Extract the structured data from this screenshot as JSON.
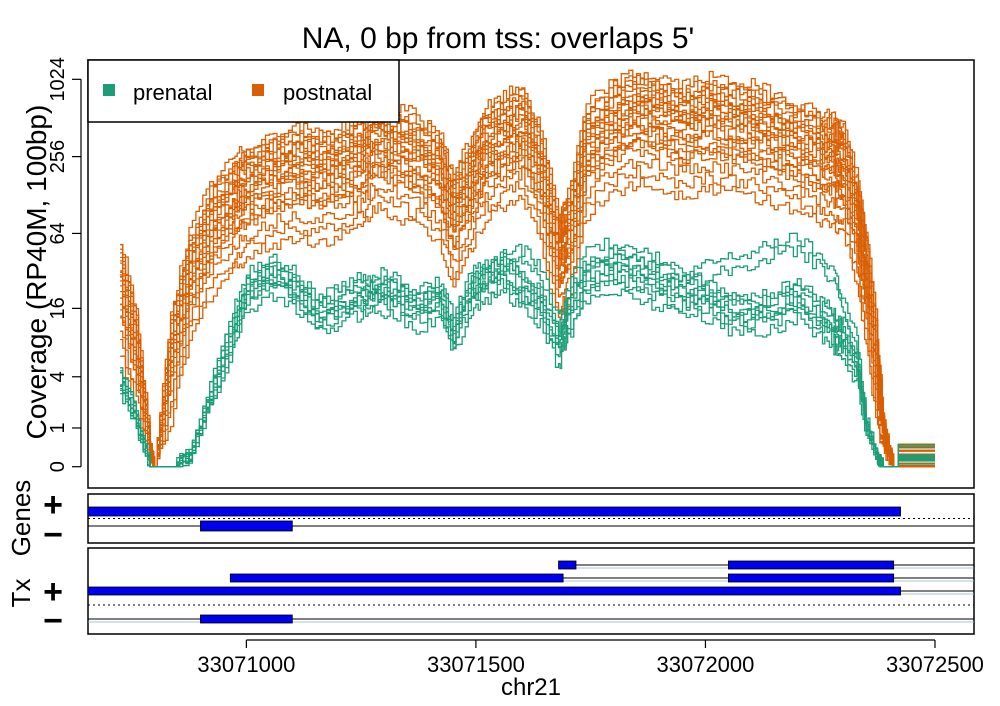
{
  "chart_data": {
    "type": "line",
    "title": "NA, 0 bp from tss: overlaps 5'",
    "xlabel": "chr21",
    "ylabel": "Coverage (RP40M, 100bp)",
    "xlim": [
      33070655,
      33072585
    ],
    "x_ticks": [
      {
        "value": 33071000,
        "label": "33071000"
      },
      {
        "value": 33071500,
        "label": "33071500"
      },
      {
        "value": 33072000,
        "label": "33072000"
      },
      {
        "value": 33072500,
        "label": "33072500"
      }
    ],
    "y_scale": "log2(y+1)",
    "ylim_transformed": [
      -0.55,
      10.5
    ],
    "y_ticks": [
      {
        "value": 0,
        "label": "0"
      },
      {
        "value": 1,
        "label": "1"
      },
      {
        "value": 4,
        "label": "4"
      },
      {
        "value": 16,
        "label": "16"
      },
      {
        "value": 64,
        "label": "64"
      },
      {
        "value": 256,
        "label": "256"
      },
      {
        "value": 1024,
        "label": "1024"
      }
    ],
    "legend": {
      "placement": "top-left",
      "entries": [
        {
          "label": "prenatal",
          "color": "#1b9e77"
        },
        {
          "label": "postnatal",
          "color": "#d95f02"
        }
      ]
    },
    "x_sample": [
      33070725,
      33070760,
      33070790,
      33070800,
      33070835,
      33070875,
      33070920,
      33070970,
      33071000,
      33071050,
      33071100,
      33071150,
      33071200,
      33071250,
      33071280,
      33071320,
      33071370,
      33071420,
      33071450,
      33071490,
      33071520,
      33071560,
      33071600,
      33071640,
      33071680,
      33071700,
      33071740,
      33071800,
      33071850,
      33071900,
      33071950,
      33072000,
      33072050,
      33072100,
      33072150,
      33072200,
      33072250,
      33072280,
      33072300,
      33072330,
      33072350,
      33072375,
      33072390,
      33072410,
      33072420
    ],
    "series": [
      {
        "group": "postnatal",
        "profile": "postnatal",
        "offset_log2": 0.0
      },
      {
        "group": "postnatal",
        "profile": "postnatal",
        "offset_log2": 0.3
      },
      {
        "group": "postnatal",
        "profile": "postnatal",
        "offset_log2": -0.3
      },
      {
        "group": "postnatal",
        "profile": "postnatal",
        "offset_log2": 0.6
      },
      {
        "group": "postnatal",
        "profile": "postnatal",
        "offset_log2": -0.6
      },
      {
        "group": "postnatal",
        "profile": "postnatal",
        "offset_log2": 0.9
      },
      {
        "group": "postnatal",
        "profile": "postnatal",
        "offset_log2": -0.9
      },
      {
        "group": "postnatal",
        "profile": "postnatal",
        "offset_log2": 0.15
      },
      {
        "group": "postnatal",
        "profile": "postnatal",
        "offset_log2": -0.15
      },
      {
        "group": "postnatal",
        "profile": "postnatal",
        "offset_log2": 0.45
      },
      {
        "group": "postnatal",
        "profile": "postnatal",
        "offset_log2": -0.45
      },
      {
        "group": "postnatal",
        "profile": "postnatal",
        "offset_log2": 0.75
      },
      {
        "group": "postnatal",
        "profile": "postnatal",
        "offset_log2": -0.75
      },
      {
        "group": "postnatal",
        "profile": "postnatal",
        "offset_log2": 1.05
      },
      {
        "group": "postnatal",
        "profile": "postnatal",
        "offset_log2": -1.2
      },
      {
        "group": "postnatal",
        "profile": "postnatal",
        "offset_log2": -1.5
      },
      {
        "group": "postnatal",
        "profile": "postnatal",
        "offset_log2": 0.2
      },
      {
        "group": "postnatal",
        "profile": "postnatal",
        "offset_log2": -0.05
      },
      {
        "group": "postnatal",
        "profile": "postnatal",
        "offset_log2": 0.5
      },
      {
        "group": "postnatal",
        "profile": "postnatal",
        "offset_log2": -0.35
      },
      {
        "group": "postnatal",
        "profile": "postnatal",
        "offset_log2": 0.8
      },
      {
        "group": "postnatal",
        "profile": "postnatal",
        "offset_log2": -0.8
      },
      {
        "group": "postnatal",
        "profile": "postnatal",
        "offset_log2": 0.35
      },
      {
        "group": "postnatal",
        "profile": "postnatal",
        "offset_log2": -1.8
      },
      {
        "group": "prenatal",
        "profile": "prenatal",
        "offset_log2": 0.0
      },
      {
        "group": "prenatal",
        "profile": "prenatal",
        "offset_log2": 0.25
      },
      {
        "group": "prenatal",
        "profile": "prenatal",
        "offset_log2": -0.25
      },
      {
        "group": "prenatal",
        "profile": "prenatal",
        "offset_log2": 0.5
      },
      {
        "group": "prenatal",
        "profile": "prenatal",
        "offset_log2": -0.45
      },
      {
        "group": "prenatal",
        "profile": "prenatal",
        "offset_log2": 0.1
      },
      {
        "group": "prenatal",
        "profile": "prenatal",
        "offset_log2": -0.1
      },
      {
        "group": "prenatal",
        "profile": "prenatal",
        "offset_log2": 0.35
      },
      {
        "group": "prenatal",
        "profile": "prenatal_alt",
        "offset_log2": 0.0
      },
      {
        "group": "prenatal",
        "profile": "prenatal_alt",
        "offset_log2": 0.3
      }
    ],
    "profiles": {
      "postnatal": [
        4.8,
        3.0,
        0.5,
        0.0,
        3.0,
        5.0,
        6.2,
        6.9,
        7.2,
        7.5,
        7.7,
        7.6,
        7.7,
        8.0,
        8.5,
        8.3,
        8.0,
        7.6,
        6.5,
        7.5,
        8.2,
        8.5,
        8.8,
        7.6,
        5.5,
        6.0,
        8.3,
        8.9,
        9.1,
        9.0,
        8.8,
        9.0,
        8.9,
        8.8,
        8.6,
        8.3,
        8.1,
        8.0,
        7.8,
        6.5,
        5.0,
        2.5,
        0.8,
        0.0,
        0.0
      ],
      "prenatal": [
        2.2,
        1.2,
        0.0,
        0.0,
        0.0,
        0.3,
        1.8,
        3.5,
        4.5,
        4.9,
        4.6,
        3.9,
        4.1,
        4.4,
        4.5,
        4.4,
        4.0,
        4.3,
        3.4,
        4.5,
        4.7,
        5.0,
        4.5,
        4.1,
        3.0,
        3.8,
        4.8,
        5.0,
        4.8,
        4.6,
        4.4,
        4.3,
        4.0,
        3.9,
        4.0,
        4.3,
        3.8,
        3.5,
        3.2,
        2.5,
        1.0,
        0.2,
        0.0,
        0.0,
        0.0
      ],
      "prenatal_alt": [
        2.0,
        1.0,
        0.0,
        0.0,
        0.0,
        0.2,
        1.6,
        3.3,
        4.3,
        4.8,
        4.5,
        3.8,
        4.0,
        4.3,
        4.4,
        4.3,
        4.0,
        4.2,
        3.3,
        4.5,
        4.8,
        5.2,
        5.3,
        4.9,
        3.5,
        4.4,
        5.3,
        5.5,
        5.4,
        5.0,
        4.7,
        4.9,
        5.1,
        5.2,
        5.5,
        5.6,
        5.1,
        4.8,
        4.0,
        3.0,
        1.2,
        0.2,
        0.0,
        0.0,
        0.0
      ]
    },
    "tail_segment": {
      "x": [
        33072420,
        33072450,
        33072470,
        33072500
      ],
      "value": 0.3,
      "spread": 0.6
    }
  },
  "genes_track": {
    "label": "Genes",
    "strand_plus": "+",
    "strand_minus": "−",
    "plus_features": [
      {
        "start": 33070655,
        "end": 33072425
      }
    ],
    "minus_features": [
      {
        "start": 33070900,
        "end": 33071100
      }
    ],
    "feature_color": "#0000ee"
  },
  "tx_track": {
    "label": "Tx",
    "strand_plus": "+",
    "strand_minus": "−",
    "rows": [
      {
        "strand": "+",
        "line": [
          33071680,
          33072585
        ],
        "exons": [
          [
            33071680,
            33071718
          ],
          [
            33072050,
            33072410
          ]
        ]
      },
      {
        "strand": "+",
        "line": [
          33070965,
          33072585
        ],
        "exons": [
          [
            33070965,
            33071690
          ],
          [
            33072050,
            33072410
          ]
        ]
      },
      {
        "strand": "+",
        "line": [
          33070655,
          33072585
        ],
        "exons": [
          [
            33070655,
            33072425
          ]
        ]
      },
      {
        "strand": "-",
        "line": [
          33070655,
          33072585
        ],
        "exons": [
          [
            33070900,
            33071100
          ]
        ]
      }
    ],
    "feature_color": "#0000ee"
  }
}
